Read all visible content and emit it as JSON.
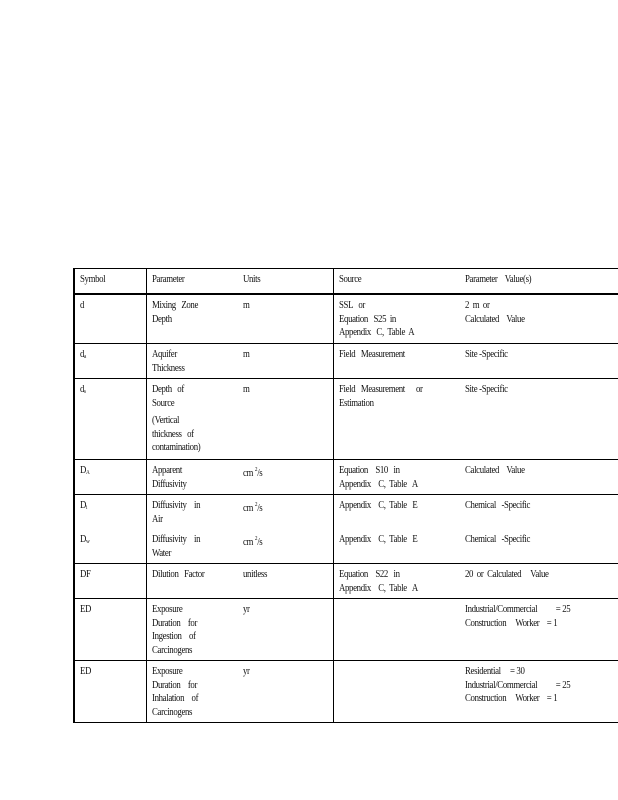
{
  "table": {
    "headers": {
      "symbol": "Symbol",
      "parameter": "Parameter",
      "units": "Units",
      "source": "Source",
      "value": "Parameter    Value(s)"
    },
    "rows": [
      {
        "entries": [
          {
            "symbol": "d",
            "sub": "",
            "parameter": [
              "Mixing   Zone",
              "Depth"
            ],
            "units": "m",
            "unit_sup": "",
            "unit_tail": "",
            "source": [
              "SSL   or",
              "Equation   S25  in",
              "Appendix   C,  Table  A"
            ],
            "value": [
              "2  m  or",
              "Calculated    Value"
            ]
          }
        ]
      },
      {
        "entries": [
          {
            "symbol": "d",
            "sub": "a",
            "parameter": [
              "Aquifer",
              "Thickness"
            ],
            "units": "m",
            "unit_sup": "",
            "unit_tail": "",
            "source": [
              "Field   Measurement"
            ],
            "value": [
              "Site -Specific"
            ]
          }
        ]
      },
      {
        "entries": [
          {
            "symbol": "d",
            "sub": "s",
            "parameter": [
              "Depth   of",
              "Source",
              "",
              "(Vertical",
              "thickness   of",
              "contamination)"
            ],
            "units": "m",
            "unit_sup": "",
            "unit_tail": "",
            "source": [
              "Field   Measurement      or",
              "Estimation"
            ],
            "value": [
              "Site -Specific"
            ]
          }
        ]
      },
      {
        "entries": [
          {
            "symbol": "D",
            "sub": "A",
            "parameter": [
              "Apparent",
              "Diffusivity"
            ],
            "units": "cm ",
            "unit_sup": "2",
            "unit_tail": "/s",
            "source": [
              "Equation    S10   in",
              "Appendix    C,  Table   A"
            ],
            "value": [
              "Calculated    Value"
            ]
          }
        ]
      },
      {
        "entries": [
          {
            "symbol": "D",
            "sub": "i",
            "parameter": [
              "Diffusivity    in",
              "Air"
            ],
            "units": "cm ",
            "unit_sup": "2",
            "unit_tail": "/s",
            "source": [
              "Appendix    C,  Table   E"
            ],
            "value": [
              "Chemical   -Specific"
            ]
          },
          {
            "symbol": "D",
            "sub": "w",
            "parameter": [
              "Diffusivity    in",
              "Water"
            ],
            "units": "cm ",
            "unit_sup": "2",
            "unit_tail": "/s",
            "source": [
              "Appendix    C,  Table   E"
            ],
            "value": [
              "Chemical   -Specific"
            ]
          }
        ]
      },
      {
        "entries": [
          {
            "symbol": "DF",
            "sub": "",
            "parameter": [
              "Dilution   Factor"
            ],
            "units": "unitless",
            "unit_sup": "",
            "unit_tail": "",
            "source": [
              "Equation    S22   in",
              "Appendix    C,  Table   A"
            ],
            "value": [
              "20  or  Calculated     Value"
            ]
          }
        ]
      },
      {
        "entries": [
          {
            "symbol": "ED",
            "sub": "",
            "parameter": [
              "Exposure",
              "Duration    for",
              "Ingestion    of",
              "Carcinogens"
            ],
            "units": "yr",
            "unit_sup": "",
            "unit_tail": "",
            "source": [],
            "value": [
              "Industrial/Commercial          = 25",
              "Construction     Worker    = 1"
            ]
          }
        ]
      },
      {
        "entries": [
          {
            "symbol": "ED",
            "sub": "",
            "parameter": [
              "Exposure",
              "Duration    for",
              "Inhalation    of",
              "Carcinogens"
            ],
            "units": "yr",
            "unit_sup": "",
            "unit_tail": "",
            "source": [],
            "value": [
              "Residential     = 30",
              "Industrial/Commercial          = 25",
              "Construction     Worker    = 1"
            ]
          }
        ]
      }
    ]
  }
}
